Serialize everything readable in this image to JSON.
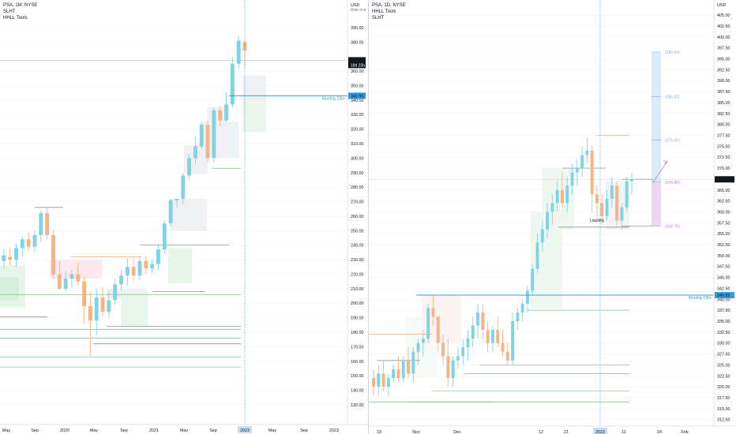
{
  "colors": {
    "up": "#7fd3e3",
    "down": "#f6b383",
    "priceTag": "#131722",
    "ob": "#2f9fdc",
    "ext": "#cfe3f7",
    "purple": "#d6a6e6",
    "green": "#7cc47f",
    "fib": "#7ab3e0",
    "cur": "#2196f3",
    "grid": "#e0e3eb",
    "axisText": "#131722"
  },
  "left": {
    "legend": [
      "PSA, 1M, NYSE",
      "SLHT",
      "HHLL Tools"
    ],
    "currency": "USD",
    "currencySub": "Risk-one",
    "priceTag": {
      "price": "367.43",
      "countdown": "18d 23h"
    },
    "obLabel": "Monthly OB+",
    "obTag": "342.95",
    "dateTag": "2023",
    "timeLabels": [
      "May",
      "Sep",
      "2020",
      "May",
      "Sep",
      "2021",
      "May",
      "Sep",
      "May",
      "Sep",
      "2023"
    ],
    "priceTicks": [
      130,
      140,
      150,
      160,
      170,
      180,
      190,
      200,
      210,
      220,
      230,
      240,
      250,
      260,
      270,
      280,
      290,
      300,
      310,
      320,
      330,
      340,
      350,
      360,
      380,
      390
    ],
    "priceTickLabels": [
      "130.00",
      "140.00",
      "150.00",
      "160.00",
      "170.00",
      "180.00",
      "190.00",
      "200.00",
      "210.00",
      "220.00",
      "230.00",
      "240.00",
      "250.00",
      "260.00",
      "270.00",
      "280.00",
      "290.00",
      "300.00",
      "310.00",
      "320.00",
      "330.00",
      "340.00",
      "350.00",
      "360.00",
      "380.00",
      "390.00"
    ]
  },
  "right": {
    "legend": [
      "PSA, 1D, NYSE",
      "HHLL Tools",
      "SLHT"
    ],
    "currency": "USD",
    "priceTag": "367.43",
    "obLabel": "Monthly OB+",
    "obTag": "340.95",
    "liquidityLabel": "Liquidity",
    "dateTag": "2023",
    "timeLabels": [
      "19",
      "Nov",
      "Dec",
      "12",
      "21",
      "2023",
      "11",
      "24",
      "Feb"
    ],
    "priceTicks": [
      312.5,
      315,
      317.5,
      320,
      322.5,
      325,
      327.5,
      330,
      332.5,
      335,
      337.5,
      340,
      342.5,
      345,
      347.5,
      350,
      352.5,
      355,
      357.5,
      360,
      362.5,
      365,
      370,
      372.5,
      375,
      377.5,
      380,
      382.5,
      385,
      387.5,
      390,
      392.5,
      395,
      397.5,
      400,
      402.5,
      405
    ],
    "priceTickLabels": [
      "312.50",
      "315.00",
      "317.50",
      "320.00",
      "322.50",
      "325.00",
      "327.50",
      "330.00",
      "332.50",
      "335.00",
      "337.50",
      "340.00",
      "342.50",
      "345.00",
      "347.50",
      "350.00",
      "352.50",
      "355.00",
      "357.50",
      "360.00",
      "362.50",
      "365.00",
      "370.00",
      "372.50",
      "375.00",
      "377.50",
      "380.00",
      "382.50",
      "385.00",
      "387.50",
      "390.00",
      "392.50",
      "395.00",
      "397.50",
      "400.00",
      "402.50",
      "405.00"
    ],
    "fibLabels": [
      {
        "price": 396.54,
        "label": "(396.54)"
      },
      {
        "price": 386.32,
        "label": "(386.32)"
      },
      {
        "price": 376.41,
        "label": "(376.41)"
      },
      {
        "price": 366.8,
        "label": "(366.80)"
      },
      {
        "price": 356.78,
        "label": "(356.78)"
      }
    ]
  },
  "chart_data": [
    {
      "type": "candlestick",
      "title": "PSA, 1M, NYSE",
      "ylabel": "USD",
      "ylim": [
        124,
        397
      ],
      "obLevel": 342.95,
      "currentPrice": 367.43,
      "ohlc": [
        {
          "o": 223,
          "h": 230,
          "l": 208,
          "c": 228
        },
        {
          "o": 229,
          "h": 237,
          "l": 224,
          "c": 233
        },
        {
          "o": 232,
          "h": 238,
          "l": 226,
          "c": 230
        },
        {
          "o": 230,
          "h": 241,
          "l": 225,
          "c": 238
        },
        {
          "o": 238,
          "h": 246,
          "l": 232,
          "c": 244
        },
        {
          "o": 244,
          "h": 249,
          "l": 236,
          "c": 239
        },
        {
          "o": 239,
          "h": 250,
          "l": 235,
          "c": 247
        },
        {
          "o": 247,
          "h": 264,
          "l": 242,
          "c": 262
        },
        {
          "o": 262,
          "h": 266,
          "l": 244,
          "c": 247
        },
        {
          "o": 247,
          "h": 251,
          "l": 217,
          "c": 220
        },
        {
          "o": 220,
          "h": 229,
          "l": 209,
          "c": 210
        },
        {
          "o": 210,
          "h": 222,
          "l": 208,
          "c": 217
        },
        {
          "o": 217,
          "h": 223,
          "l": 211,
          "c": 220
        },
        {
          "o": 220,
          "h": 228,
          "l": 212,
          "c": 215
        },
        {
          "o": 215,
          "h": 219,
          "l": 186,
          "c": 198
        },
        {
          "o": 198,
          "h": 207,
          "l": 164,
          "c": 188
        },
        {
          "o": 188,
          "h": 210,
          "l": 178,
          "c": 204
        },
        {
          "o": 204,
          "h": 211,
          "l": 191,
          "c": 194
        },
        {
          "o": 194,
          "h": 208,
          "l": 190,
          "c": 202
        },
        {
          "o": 202,
          "h": 217,
          "l": 199,
          "c": 213
        },
        {
          "o": 213,
          "h": 223,
          "l": 209,
          "c": 219
        },
        {
          "o": 219,
          "h": 231,
          "l": 212,
          "c": 225
        },
        {
          "o": 225,
          "h": 232,
          "l": 215,
          "c": 219
        },
        {
          "o": 219,
          "h": 232,
          "l": 216,
          "c": 229
        },
        {
          "o": 229,
          "h": 233,
          "l": 220,
          "c": 224
        },
        {
          "o": 224,
          "h": 230,
          "l": 221,
          "c": 227
        },
        {
          "o": 227,
          "h": 240,
          "l": 223,
          "c": 237
        },
        {
          "o": 237,
          "h": 257,
          "l": 234,
          "c": 255
        },
        {
          "o": 255,
          "h": 272,
          "l": 253,
          "c": 271
        },
        {
          "o": 271,
          "h": 272,
          "l": 266,
          "c": 272
        },
        {
          "o": 272,
          "h": 290,
          "l": 268,
          "c": 288
        },
        {
          "o": 288,
          "h": 303,
          "l": 285,
          "c": 300
        },
        {
          "o": 300,
          "h": 315,
          "l": 296,
          "c": 308
        },
        {
          "o": 308,
          "h": 325,
          "l": 306,
          "c": 323
        },
        {
          "o": 323,
          "h": 326,
          "l": 297,
          "c": 300
        },
        {
          "o": 300,
          "h": 335,
          "l": 297,
          "c": 333
        },
        {
          "o": 333,
          "h": 336,
          "l": 322,
          "c": 326
        },
        {
          "o": 326,
          "h": 345,
          "l": 325,
          "c": 337
        },
        {
          "o": 337,
          "h": 370,
          "l": 335,
          "c": 365
        },
        {
          "o": 365,
          "h": 384,
          "l": 362,
          "c": 381
        },
        {
          "o": 380,
          "h": 382,
          "l": 362,
          "c": 374
        }
      ]
    },
    {
      "type": "candlestick",
      "title": "PSA, 1D, NYSE",
      "ylabel": "USD",
      "ylim": [
        311,
        407
      ],
      "obLevel": 340.95,
      "currentPrice": 367.43,
      "ohlc": [
        {
          "o": 322,
          "h": 324,
          "l": 318,
          "c": 320
        },
        {
          "o": 320,
          "h": 325,
          "l": 318,
          "c": 323
        },
        {
          "o": 323,
          "h": 326,
          "l": 319,
          "c": 320
        },
        {
          "o": 320,
          "h": 323,
          "l": 318,
          "c": 322
        },
        {
          "o": 322,
          "h": 325,
          "l": 321,
          "c": 324
        },
        {
          "o": 324,
          "h": 327,
          "l": 321,
          "c": 322
        },
        {
          "o": 322,
          "h": 327,
          "l": 321,
          "c": 326
        },
        {
          "o": 326,
          "h": 329,
          "l": 322,
          "c": 323
        },
        {
          "o": 323,
          "h": 329,
          "l": 321,
          "c": 328
        },
        {
          "o": 328,
          "h": 331,
          "l": 325,
          "c": 330
        },
        {
          "o": 330,
          "h": 333,
          "l": 327,
          "c": 331
        },
        {
          "o": 331,
          "h": 339,
          "l": 330,
          "c": 338
        },
        {
          "o": 338,
          "h": 341,
          "l": 334,
          "c": 336
        },
        {
          "o": 336,
          "h": 336,
          "l": 328,
          "c": 330
        },
        {
          "o": 330,
          "h": 332,
          "l": 325,
          "c": 327
        },
        {
          "o": 327,
          "h": 331,
          "l": 320,
          "c": 322
        },
        {
          "o": 322,
          "h": 327,
          "l": 320,
          "c": 326
        },
        {
          "o": 326,
          "h": 329,
          "l": 324,
          "c": 327
        },
        {
          "o": 327,
          "h": 331,
          "l": 325,
          "c": 329
        },
        {
          "o": 329,
          "h": 333,
          "l": 326,
          "c": 331
        },
        {
          "o": 331,
          "h": 336,
          "l": 329,
          "c": 334
        },
        {
          "o": 334,
          "h": 339,
          "l": 331,
          "c": 337
        },
        {
          "o": 337,
          "h": 339,
          "l": 331,
          "c": 333
        },
        {
          "o": 333,
          "h": 335,
          "l": 328,
          "c": 330
        },
        {
          "o": 330,
          "h": 334,
          "l": 328,
          "c": 333
        },
        {
          "o": 333,
          "h": 336,
          "l": 329,
          "c": 330
        },
        {
          "o": 330,
          "h": 333,
          "l": 327,
          "c": 328
        },
        {
          "o": 328,
          "h": 330,
          "l": 325,
          "c": 326
        },
        {
          "o": 326,
          "h": 337,
          "l": 325,
          "c": 335
        },
        {
          "o": 335,
          "h": 338,
          "l": 333,
          "c": 337
        },
        {
          "o": 337,
          "h": 340,
          "l": 335,
          "c": 339
        },
        {
          "o": 339,
          "h": 343,
          "l": 337,
          "c": 342
        },
        {
          "o": 342,
          "h": 348,
          "l": 341,
          "c": 347
        },
        {
          "o": 347,
          "h": 355,
          "l": 346,
          "c": 353
        },
        {
          "o": 353,
          "h": 358,
          "l": 351,
          "c": 356
        },
        {
          "o": 356,
          "h": 362,
          "l": 354,
          "c": 360
        },
        {
          "o": 360,
          "h": 364,
          "l": 357,
          "c": 362
        },
        {
          "o": 362,
          "h": 367,
          "l": 360,
          "c": 365
        },
        {
          "o": 365,
          "h": 369,
          "l": 361,
          "c": 362
        },
        {
          "o": 362,
          "h": 368,
          "l": 360,
          "c": 366
        },
        {
          "o": 366,
          "h": 371,
          "l": 364,
          "c": 369
        },
        {
          "o": 369,
          "h": 372,
          "l": 366,
          "c": 370
        },
        {
          "o": 370,
          "h": 375,
          "l": 368,
          "c": 373
        },
        {
          "o": 373,
          "h": 377,
          "l": 371,
          "c": 374
        },
        {
          "o": 374,
          "h": 375,
          "l": 360,
          "c": 364
        },
        {
          "o": 364,
          "h": 366,
          "l": 358,
          "c": 362
        },
        {
          "o": 362,
          "h": 364,
          "l": 357,
          "c": 359
        },
        {
          "o": 359,
          "h": 365,
          "l": 358,
          "c": 363
        },
        {
          "o": 363,
          "h": 368,
          "l": 361,
          "c": 366
        },
        {
          "o": 366,
          "h": 367,
          "l": 357,
          "c": 358
        },
        {
          "o": 358,
          "h": 362,
          "l": 356,
          "c": 361
        },
        {
          "o": 361,
          "h": 368,
          "l": 360,
          "c": 367
        },
        {
          "o": 367,
          "h": 369,
          "l": 364,
          "c": 367.43
        }
      ]
    }
  ]
}
